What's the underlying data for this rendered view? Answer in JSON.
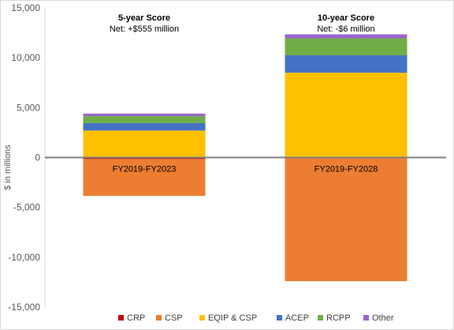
{
  "chart_data": {
    "type": "bar",
    "stacked": true,
    "categories": [
      "FY2019-FY2023",
      "FY2019-FY2028"
    ],
    "ylabel": "$ in millions",
    "ylim": [
      -15000,
      15000
    ],
    "yticks": [
      15000,
      10000,
      5000,
      0,
      -5000,
      -10000,
      -15000
    ],
    "ytick_labels": [
      "15,000",
      "10,000",
      "5,000",
      "0",
      "-5,000",
      "-10,000",
      "-15,000"
    ],
    "grid": false,
    "legend_position": "bottom",
    "series": [
      {
        "name": "CRP",
        "color": "#c00000",
        "values": [
          -150,
          0
        ]
      },
      {
        "name": "CSP",
        "color": "#ed7d31",
        "values": [
          -3700,
          -12400
        ]
      },
      {
        "name": "EQIP & CSP",
        "color": "#ffc000",
        "values": [
          2700,
          8500
        ]
      },
      {
        "name": "ACEP",
        "color": "#4472c4",
        "values": [
          750,
          1750
        ]
      },
      {
        "name": "RCPP",
        "color": "#70ad47",
        "values": [
          700,
          1700
        ]
      },
      {
        "name": "Other",
        "color": "#9966cc",
        "values": [
          250,
          400
        ]
      }
    ],
    "annotations": [
      {
        "title": "5-year Score",
        "subtitle": "Net: +$555 million"
      },
      {
        "title": "10-year Score",
        "subtitle": "Net: -$6 million"
      }
    ]
  }
}
